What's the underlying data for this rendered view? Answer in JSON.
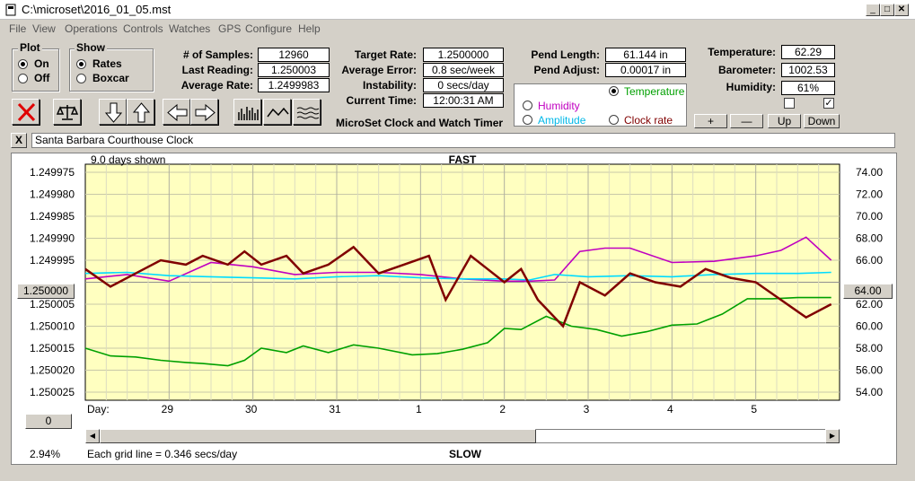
{
  "window": {
    "title": "C:\\microset\\2016_01_05.mst"
  },
  "menu": [
    "File",
    "View",
    "Operations",
    "Controls",
    "Watches",
    "GPS",
    "Configure",
    "Help"
  ],
  "plot_group": {
    "title": "Plot",
    "options": [
      "On",
      "Off"
    ],
    "selected": "On"
  },
  "show_group": {
    "title": "Show",
    "options": [
      "Rates",
      "Boxcar"
    ],
    "selected": "Rates"
  },
  "stats": {
    "samples_label": "# of Samples:",
    "samples": "12960",
    "last_label": "Last Reading:",
    "last": "1.250003",
    "avg_label": "Average Rate:",
    "avg": "1.2499983",
    "target_label": "Target Rate:",
    "target": "1.2500000",
    "err_label": "Average Error:",
    "err": "0.8 sec/week",
    "inst_label": "Instability:",
    "inst": "0 secs/day",
    "time_label": "Current Time:",
    "time": "12:00:31 AM",
    "pend_len_label": "Pend Length:",
    "pend_len": "61.144 in",
    "pend_adj_label": "Pend Adjust:",
    "pend_adj": "0.00017 in",
    "temp_label": "Temperature:",
    "temp": "62.29",
    "baro_label": "Barometer:",
    "baro": "1002.53",
    "hum_label": "Humidity:",
    "hum": "61%"
  },
  "app_name": "MicroSet Clock and Watch Timer",
  "overlay": {
    "options": [
      {
        "label": "Temperature",
        "color": "#00a000",
        "selected": true
      },
      {
        "label": "Humidity",
        "color": "#c000c0",
        "selected": false
      },
      {
        "label": "Amplitude",
        "color": "#00c8ff",
        "selected": false
      },
      {
        "label": "Clock rate",
        "color": "#800000",
        "selected": false
      }
    ]
  },
  "scale_buttons": {
    "plus": "+",
    "minus": "—",
    "up": "Up",
    "down": "Down"
  },
  "checkboxes": [
    false,
    true
  ],
  "clock_name": "Santa Barbara Courthouse Clock",
  "close_x": "X",
  "chart": {
    "days_shown": "9.0 days shown",
    "top_label": "FAST",
    "bottom_label": "SLOW",
    "grid_note": "Each grid line = 0.346 secs/day",
    "percent": "2.94%",
    "center_left": "1.250000",
    "center_right": "64.00",
    "zero_btn": "0",
    "day_label": "Day:"
  },
  "chart_data": {
    "type": "line",
    "x_ticks": [
      "29",
      "30",
      "31",
      "1",
      "2",
      "3",
      "4",
      "5"
    ],
    "x_range_days": [
      0,
      9
    ],
    "left_axis": {
      "ticks": [
        "1.249975",
        "1.249980",
        "1.249985",
        "1.249990",
        "1.249995",
        "1.250000",
        "1.250005",
        "1.250010",
        "1.250015",
        "1.250020",
        "1.250025"
      ],
      "range": [
        1.249975,
        1.250025
      ],
      "inverted": true
    },
    "right_axis": {
      "ticks": [
        "74.00",
        "72.00",
        "70.00",
        "68.00",
        "66.00",
        "64.00",
        "62.00",
        "60.00",
        "58.00",
        "56.00",
        "54.00"
      ],
      "range": [
        54,
        74
      ]
    },
    "series": [
      {
        "name": "Temperature",
        "color": "#00a000",
        "x": [
          0.0,
          0.3,
          0.6,
          0.9,
          1.2,
          1.4,
          1.7,
          1.9,
          2.1,
          2.4,
          2.6,
          2.9,
          3.2,
          3.5,
          3.9,
          4.2,
          4.5,
          4.8,
          5.0,
          5.2,
          5.5,
          5.8,
          6.1,
          6.4,
          6.7,
          7.0,
          7.3,
          7.6,
          7.9,
          8.2,
          8.5,
          8.7,
          8.9
        ],
        "y": [
          58.0,
          57.3,
          57.2,
          56.9,
          56.7,
          56.6,
          56.4,
          56.9,
          58.0,
          57.6,
          58.2,
          57.6,
          58.3,
          58.0,
          57.4,
          57.5,
          57.9,
          58.5,
          59.8,
          59.7,
          60.9,
          60.0,
          59.7,
          59.1,
          59.5,
          60.1,
          60.2,
          61.1,
          62.5,
          62.5,
          62.6,
          62.6,
          62.6
        ]
      },
      {
        "name": "Humidity",
        "color": "#c000c0",
        "x": [
          0.0,
          0.5,
          1.0,
          1.5,
          2.0,
          2.5,
          3.0,
          3.5,
          4.0,
          4.5,
          5.0,
          5.3,
          5.6,
          5.9,
          6.2,
          6.5,
          7.0,
          7.5,
          8.0,
          8.3,
          8.6,
          8.9
        ],
        "y": [
          64.3,
          64.7,
          64.1,
          65.8,
          65.4,
          64.7,
          64.9,
          64.9,
          64.7,
          64.3,
          64.1,
          64.1,
          64.2,
          66.8,
          67.1,
          67.1,
          65.8,
          65.9,
          66.4,
          66.9,
          68.1,
          66.0
        ]
      },
      {
        "name": "Amplitude",
        "color": "#00dcff",
        "x": [
          0.0,
          0.5,
          1.0,
          1.5,
          2.0,
          2.5,
          3.0,
          3.5,
          4.0,
          4.5,
          5.0,
          5.3,
          5.6,
          6.0,
          6.5,
          7.0,
          7.5,
          8.0,
          8.5,
          8.9
        ],
        "y": [
          64.8,
          64.9,
          64.6,
          64.5,
          64.4,
          64.3,
          64.5,
          64.6,
          64.4,
          64.3,
          64.3,
          64.2,
          64.7,
          64.5,
          64.6,
          64.5,
          64.7,
          64.8,
          64.8,
          64.9
        ]
      },
      {
        "name": "Clock rate",
        "color": "#800000",
        "x": [
          0.0,
          0.3,
          0.6,
          0.9,
          1.2,
          1.4,
          1.7,
          1.9,
          2.1,
          2.4,
          2.6,
          2.9,
          3.2,
          3.5,
          3.8,
          4.1,
          4.3,
          4.6,
          4.8,
          5.0,
          5.2,
          5.4,
          5.7,
          5.9,
          6.2,
          6.5,
          6.8,
          7.1,
          7.4,
          7.7,
          8.0,
          8.3,
          8.6,
          8.9
        ],
        "y": [
          1.249997,
          1.250001,
          1.249998,
          1.249995,
          1.249996,
          1.249994,
          1.249996,
          1.249993,
          1.249996,
          1.249994,
          1.249998,
          1.249996,
          1.249992,
          1.249998,
          1.249996,
          1.249994,
          1.250004,
          1.249994,
          1.249997,
          1.25,
          1.249997,
          1.250004,
          1.25001,
          1.25,
          1.250003,
          1.249998,
          1.25,
          1.250001,
          1.249997,
          1.249999,
          1.25,
          1.250004,
          1.250008,
          1.250005
        ]
      }
    ]
  }
}
